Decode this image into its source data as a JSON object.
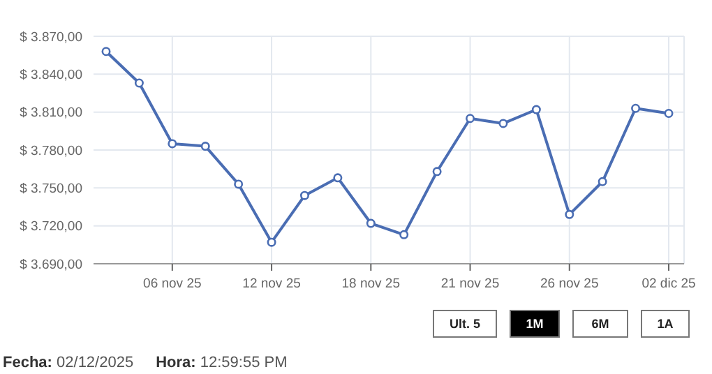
{
  "chart_data": {
    "type": "line",
    "categories": [
      null,
      null,
      "06 nov 25",
      null,
      null,
      "12 nov 25",
      null,
      null,
      "18 nov 25",
      null,
      null,
      "21 nov 25",
      null,
      null,
      "26 nov 25",
      null,
      null,
      "02 dic 25"
    ],
    "series": [
      {
        "color": "#4a6db3",
        "values": [
          3858,
          3833,
          3785,
          3783,
          3753,
          3707,
          3744,
          3758,
          3722,
          3713,
          3763,
          3805,
          3801,
          3812,
          3729,
          3755,
          3813,
          3809
        ]
      }
    ],
    "ylim": [
      3690,
      3870
    ],
    "yticks": [
      {
        "value": 3690,
        "label": "$ 3.690,00"
      },
      {
        "value": 3720,
        "label": "$ 3.720,00"
      },
      {
        "value": 3750,
        "label": "$ 3.750,00"
      },
      {
        "value": 3780,
        "label": "$ 3.780,00"
      },
      {
        "value": 3810,
        "label": "$ 3.810,00"
      },
      {
        "value": 3840,
        "label": "$ 3.840,00"
      },
      {
        "value": 3870,
        "label": "$ 3.870,00"
      }
    ],
    "grid": true,
    "marker": "circle",
    "line_style": "solid",
    "annotations": [
      "Ult. 5",
      "1M",
      "6M",
      "1A",
      "Fecha: 02/12/2025",
      "Hora: 12:59:55 PM"
    ]
  }
}
